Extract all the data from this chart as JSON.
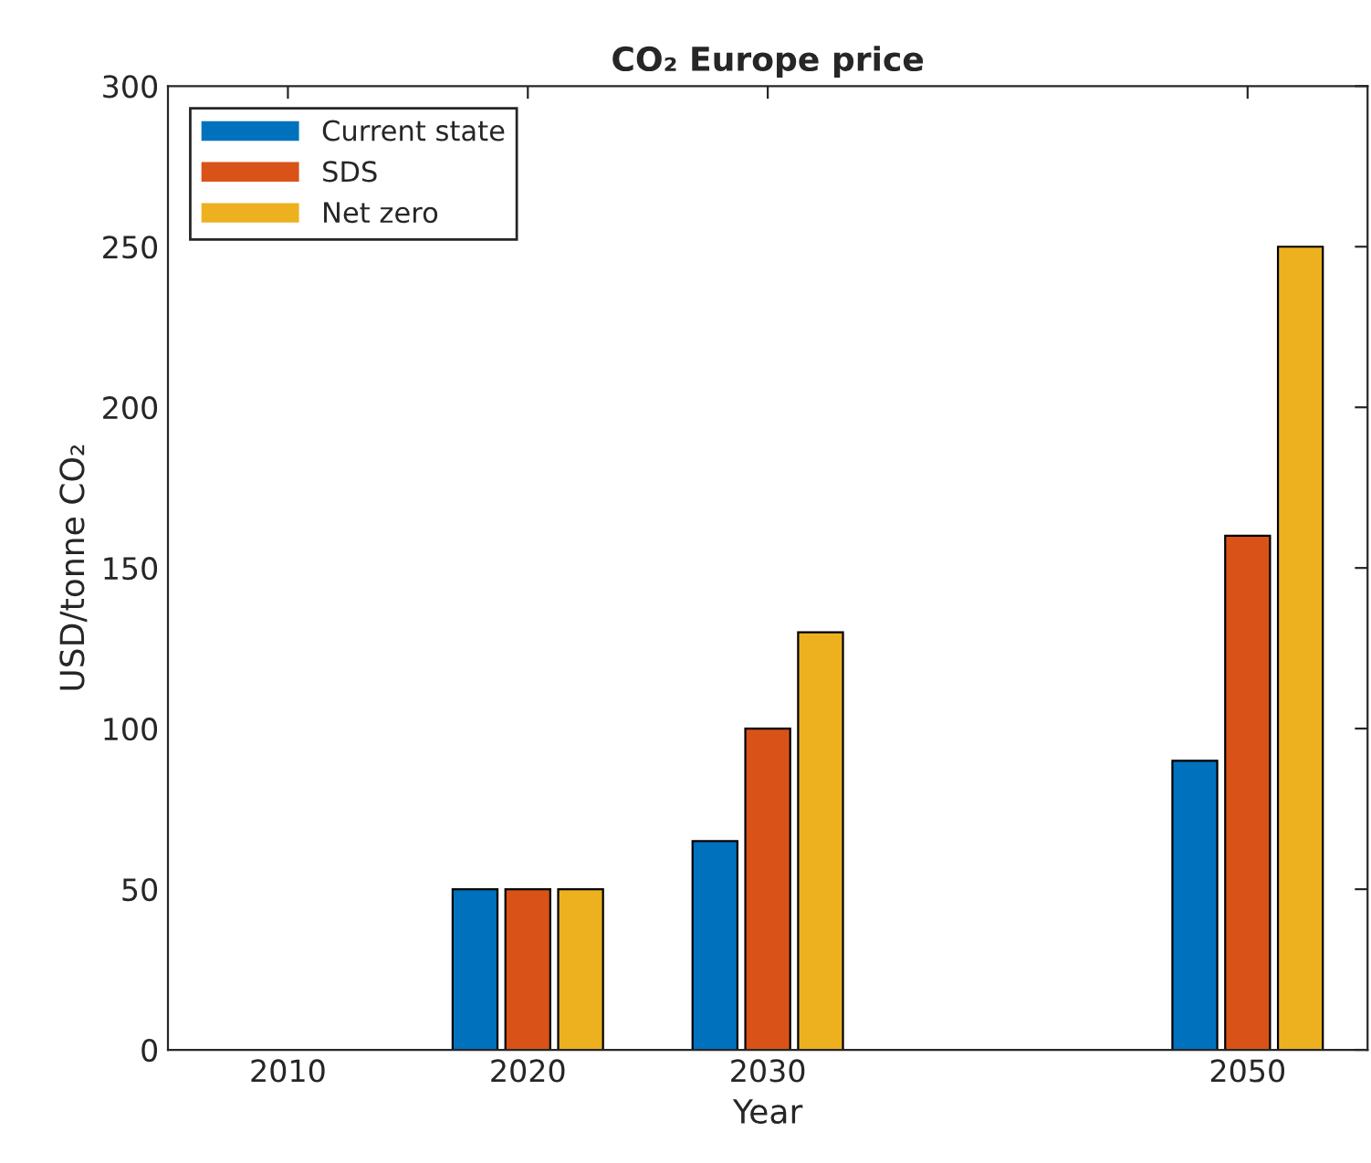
{
  "chart_data": {
    "type": "bar",
    "title": "CO₂ Europe price",
    "xlabel": "Year",
    "ylabel": "USD/tonne CO₂",
    "x": [
      2010,
      2020,
      2030,
      2050
    ],
    "series": [
      {
        "name": "Current state",
        "color": "#0072bd",
        "values": [
          0,
          50,
          65,
          90
        ]
      },
      {
        "name": "SDS",
        "color": "#d95319",
        "values": [
          0,
          50,
          100,
          160
        ]
      },
      {
        "name": "Net zero",
        "color": "#edb120",
        "values": [
          0,
          50,
          130,
          250
        ]
      }
    ],
    "xlim": [
      2005,
      2055
    ],
    "xticks": [
      2010,
      2020,
      2030,
      2050
    ],
    "ylim": [
      0,
      300
    ],
    "yticks": [
      0,
      50,
      100,
      150,
      200,
      250,
      300
    ],
    "grid": false,
    "legend": "top left"
  }
}
